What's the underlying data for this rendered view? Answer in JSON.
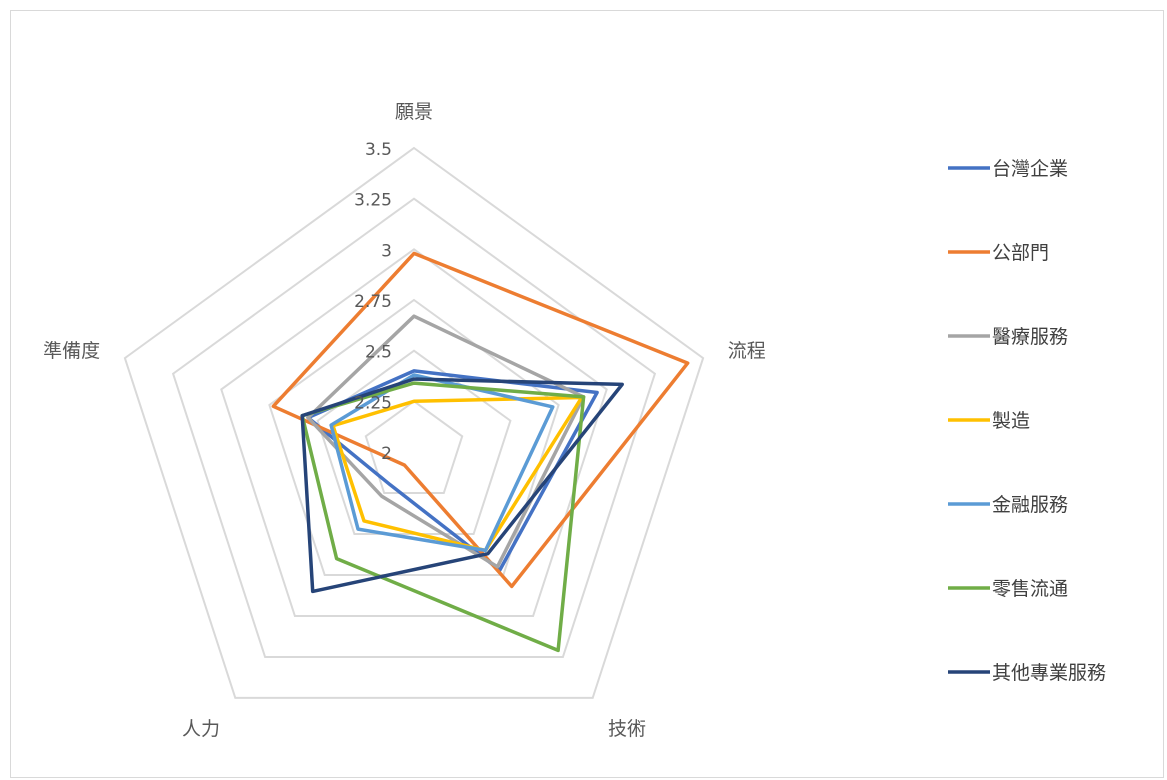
{
  "chart_data": {
    "type": "radar",
    "axes": [
      "願景",
      "流程",
      "技術",
      "人力",
      "準備度"
    ],
    "r_ticks": [
      "2",
      "2.25",
      "2.5",
      "2.75",
      "3",
      "3.25",
      "3.5"
    ],
    "r_range": [
      2,
      3.5
    ],
    "grid": true,
    "legend_position": "right",
    "series": [
      {
        "name": "台灣企業",
        "color": "#4472c4",
        "values": [
          2.4,
          2.95,
          2.72,
          2.2,
          2.55
        ]
      },
      {
        "name": "公部門",
        "color": "#ed7d31",
        "values": [
          2.98,
          3.42,
          2.82,
          2.08,
          2.73
        ]
      },
      {
        "name": "醫療服務",
        "color": "#a5a5a5",
        "values": [
          2.67,
          2.88,
          2.7,
          2.27,
          2.55
        ]
      },
      {
        "name": "製造",
        "color": "#ffc000",
        "values": [
          2.25,
          2.87,
          2.6,
          2.42,
          2.42
        ]
      },
      {
        "name": "金融服務",
        "color": "#5b9bd5",
        "values": [
          2.38,
          2.72,
          2.6,
          2.47,
          2.43
        ]
      },
      {
        "name": "零售流通",
        "color": "#70ad47",
        "values": [
          2.34,
          2.88,
          3.21,
          2.65,
          2.58
        ]
      },
      {
        "name": "其他專業服務",
        "color": "#264478",
        "values": [
          2.36,
          3.08,
          2.62,
          2.85,
          2.58
        ]
      }
    ]
  }
}
